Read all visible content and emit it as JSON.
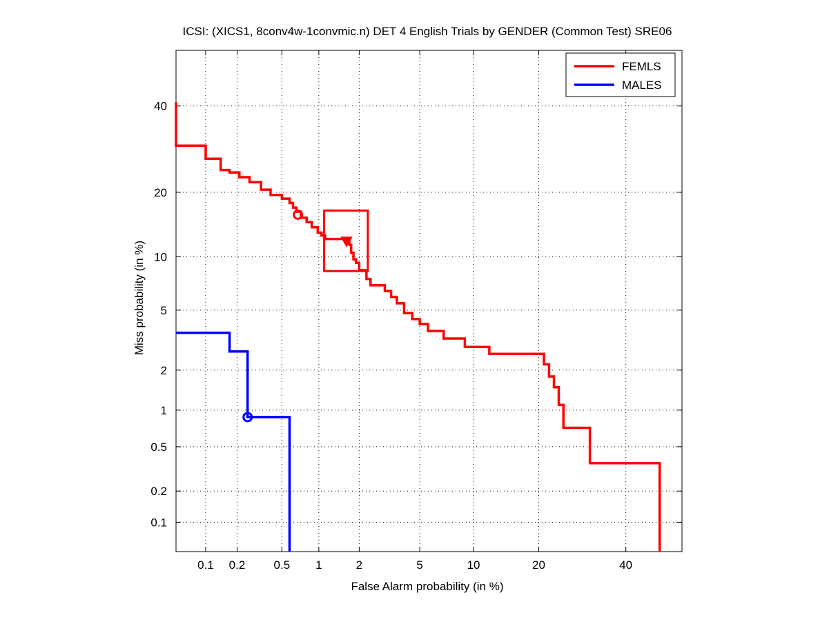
{
  "chart_data": {
    "type": "line",
    "title": "ICSI: (XICS1, 8conv4w-1convmic.n) DET 4 English Trials by GENDER (Common Test) SRE06",
    "xlabel": "False Alarm probability (in %)",
    "ylabel": "Miss probability (in %)",
    "x_scale": "probit",
    "y_scale": "probit",
    "xlim": [
      0.05,
      55
    ],
    "ylim": [
      0.05,
      55
    ],
    "x_ticks": [
      0.1,
      0.2,
      0.5,
      1,
      2,
      5,
      10,
      20,
      40
    ],
    "y_ticks": [
      0.1,
      0.2,
      0.5,
      1,
      2,
      5,
      10,
      20,
      40
    ],
    "x_tick_labels": [
      "0.1",
      "0.2",
      "0.5",
      "1",
      "2",
      "5",
      "10",
      "20",
      "40"
    ],
    "y_tick_labels": [
      "0.1",
      "0.2",
      "0.5",
      "1",
      "2",
      "5",
      "10",
      "20",
      "40"
    ],
    "grid": true,
    "legend_position": "top-right",
    "series": [
      {
        "name": "FEMLS",
        "color": "#ff0000",
        "x": [
          0.05,
          0.05,
          0.06,
          0.06,
          0.1,
          0.1,
          0.14,
          0.14,
          0.17,
          0.17,
          0.21,
          0.21,
          0.26,
          0.26,
          0.33,
          0.33,
          0.4,
          0.4,
          0.5,
          0.5,
          0.58,
          0.58,
          0.62,
          0.62,
          0.66,
          0.66,
          0.72,
          0.72,
          0.8,
          0.8,
          0.88,
          0.88,
          0.98,
          0.98,
          1.05,
          1.05,
          1.12,
          1.12,
          1.3,
          1.3,
          1.7,
          1.7,
          1.75,
          1.75,
          1.82,
          1.82,
          1.9,
          1.9,
          2.0,
          2.0,
          2.25,
          2.25,
          2.4,
          2.4,
          3.0,
          3.0,
          3.3,
          3.3,
          3.6,
          3.6,
          4.0,
          4.0,
          4.5,
          4.5,
          5.0,
          5.0,
          5.6,
          5.6,
          6.9,
          6.9,
          9.0,
          9.0,
          12.0,
          12.0,
          12.4,
          12.4,
          21.0,
          21.0,
          22.0,
          22.0,
          23.0,
          23.0,
          24.0,
          24.0,
          25.0,
          25.0,
          26.0,
          26.0,
          31.0,
          31.0,
          49.0,
          49.0
        ],
        "y": [
          41.0,
          30.0,
          30.0,
          30.0,
          30.0,
          27.0,
          27.0,
          24.5,
          24.5,
          24.0,
          24.0,
          23.0,
          23.0,
          22.0,
          22.0,
          20.5,
          20.5,
          19.5,
          19.5,
          18.8,
          18.8,
          18.0,
          18.0,
          17.2,
          17.2,
          16.5,
          16.5,
          15.5,
          15.5,
          14.8,
          14.8,
          14.0,
          14.0,
          13.2,
          13.2,
          12.8,
          12.8,
          12.3,
          12.3,
          12.3,
          12.3,
          11.5,
          11.5,
          10.5,
          10.5,
          9.7,
          9.7,
          9.3,
          9.3,
          8.5,
          8.5,
          7.6,
          7.6,
          7.0,
          7.0,
          6.5,
          6.5,
          6.0,
          6.0,
          5.5,
          5.5,
          4.8,
          4.8,
          4.4,
          4.4,
          4.1,
          4.1,
          3.7,
          3.7,
          3.3,
          3.3,
          2.9,
          2.9,
          2.6,
          2.6,
          2.6,
          2.6,
          2.2,
          2.2,
          1.8,
          1.8,
          1.5,
          1.5,
          1.1,
          1.1,
          0.72,
          0.72,
          0.72,
          0.72,
          0.36,
          0.36,
          0.05
        ],
        "markers": [
          {
            "symbol": "circle",
            "x": 0.68,
            "y": 16.0
          },
          {
            "symbol": "triangle-down",
            "x": 1.62,
            "y": 12.0
          }
        ],
        "box": {
          "x": [
            1.1,
            2.3
          ],
          "y": [
            8.4,
            16.7
          ]
        }
      },
      {
        "name": "MALES",
        "color": "#0000ff",
        "x": [
          0.05,
          0.17,
          0.17,
          0.25,
          0.25,
          0.58,
          0.58
        ],
        "y": [
          3.6,
          3.6,
          2.7,
          2.7,
          0.88,
          0.88,
          0.05
        ],
        "markers": [
          {
            "symbol": "circle",
            "x": 0.25,
            "y": 0.88
          }
        ]
      }
    ]
  }
}
